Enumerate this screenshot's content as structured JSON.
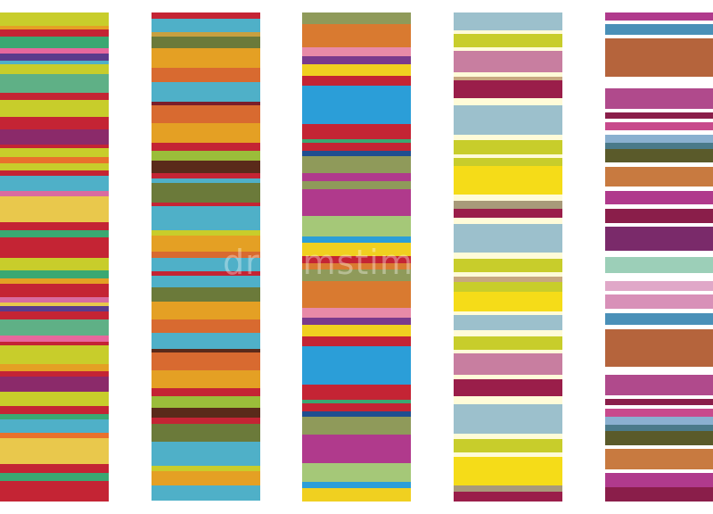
{
  "watermark": {
    "text": "dreamstime"
  },
  "columns": [
    {
      "name": "column-1-bright-stripes",
      "stripes": [
        [
          "#c8cd2b",
          14
        ],
        [
          "#e4a024",
          4
        ],
        [
          "#c42434",
          8
        ],
        [
          "#3aa872",
          12
        ],
        [
          "#e7679d",
          6
        ],
        [
          "#5b3b8c",
          8
        ],
        [
          "#4fb0c8",
          4
        ],
        [
          "#c8cd2b",
          10
        ],
        [
          "#5fb086",
          20
        ],
        [
          "#c42434",
          8
        ],
        [
          "#c8cd2b",
          18
        ],
        [
          "#c42434",
          14
        ],
        [
          "#8b2a6a",
          16
        ],
        [
          "#c42434",
          4
        ],
        [
          "#c8cd2b",
          10
        ],
        [
          "#e9712c",
          6
        ],
        [
          "#c8cd2b",
          8
        ],
        [
          "#c42434",
          6
        ],
        [
          "#4fb0c8",
          16
        ],
        [
          "#d96ba0",
          6
        ],
        [
          "#e9c84c",
          28
        ],
        [
          "#c42434",
          8
        ],
        [
          "#3aa872",
          8
        ],
        [
          "#c42434",
          22
        ],
        [
          "#c8cd2b",
          14
        ],
        [
          "#3aa872",
          8
        ],
        [
          "#e4a024",
          6
        ],
        [
          "#c42434",
          14
        ],
        [
          "#d96ba0",
          6
        ],
        [
          "#e9c84c",
          4
        ],
        [
          "#5b3b8c",
          6
        ],
        [
          "#c42434",
          8
        ],
        [
          "#5fb086",
          18
        ],
        [
          "#e7679d",
          6
        ],
        [
          "#c42434",
          4
        ],
        [
          "#c8cd2b",
          20
        ],
        [
          "#e4a024",
          8
        ],
        [
          "#c42434",
          6
        ],
        [
          "#8b2a6a",
          16
        ],
        [
          "#c8cd2b",
          16
        ],
        [
          "#c42434",
          8
        ],
        [
          "#3aa872",
          6
        ],
        [
          "#4fb0c8",
          14
        ],
        [
          "#e9712c",
          6
        ],
        [
          "#e9c84c",
          28
        ],
        [
          "#c42434",
          10
        ],
        [
          "#3aa872",
          8
        ],
        [
          "#c42434",
          22
        ]
      ]
    },
    {
      "name": "column-2-warm-cool-stripes",
      "stripes": [
        [
          "#c42434",
          6
        ],
        [
          "#4fb0c8",
          14
        ],
        [
          "#c8a040",
          4
        ],
        [
          "#6b7a3a",
          12
        ],
        [
          "#e4a024",
          20
        ],
        [
          "#d86a30",
          14
        ],
        [
          "#4fb0c8",
          20
        ],
        [
          "#7a1e2a",
          4
        ],
        [
          "#d86a30",
          18
        ],
        [
          "#e4a024",
          20
        ],
        [
          "#c42434",
          8
        ],
        [
          "#9bbd3a",
          10
        ],
        [
          "#5a2a1a",
          12
        ],
        [
          "#c42434",
          6
        ],
        [
          "#4fb0c8",
          4
        ],
        [
          "#6b7a3a",
          20
        ],
        [
          "#c42434",
          4
        ],
        [
          "#4fb0c8",
          24
        ],
        [
          "#c8cd2b",
          6
        ],
        [
          "#e4a024",
          16
        ],
        [
          "#d86a30",
          6
        ],
        [
          "#4fb0c8",
          14
        ],
        [
          "#c42434",
          4
        ],
        [
          "#4fb0c8",
          12
        ],
        [
          "#6b7a3a",
          14
        ],
        [
          "#e4a024",
          18
        ],
        [
          "#d86a30",
          14
        ],
        [
          "#4fb0c8",
          16
        ],
        [
          "#5a2a1a",
          4
        ],
        [
          "#d86a30",
          18
        ],
        [
          "#e4a024",
          18
        ],
        [
          "#c42434",
          8
        ],
        [
          "#9bbd3a",
          12
        ],
        [
          "#5a2a1a",
          10
        ],
        [
          "#c42434",
          6
        ],
        [
          "#6b7a3a",
          18
        ],
        [
          "#4fb0c8",
          24
        ],
        [
          "#c8cd2b",
          6
        ],
        [
          "#e4a024",
          14
        ],
        [
          "#4fb0c8",
          16
        ]
      ]
    },
    {
      "name": "column-3-vivid-stripes",
      "stripes": [
        [
          "#8f9a5a",
          12
        ],
        [
          "#d97a30",
          24
        ],
        [
          "#e88aa8",
          10
        ],
        [
          "#7a3a8c",
          8
        ],
        [
          "#f0d020",
          12
        ],
        [
          "#c42434",
          10
        ],
        [
          "#2b9ed8",
          40
        ],
        [
          "#c42434",
          16
        ],
        [
          "#3aa872",
          4
        ],
        [
          "#c42434",
          8
        ],
        [
          "#1f4e90",
          6
        ],
        [
          "#8f9a5a",
          18
        ],
        [
          "#b03a8c",
          8
        ],
        [
          "#8f9a5a",
          8
        ],
        [
          "#b03a8c",
          28
        ],
        [
          "#a5c878",
          22
        ],
        [
          "#2b9ed8",
          6
        ],
        [
          "#f0d020",
          14
        ],
        [
          "#c42434",
          8
        ],
        [
          "#d97a30",
          6
        ],
        [
          "#8f9a5a",
          12
        ],
        [
          "#d97a30",
          28
        ],
        [
          "#e88aa8",
          10
        ],
        [
          "#7a3a8c",
          8
        ],
        [
          "#f0d020",
          12
        ],
        [
          "#c42434",
          10
        ],
        [
          "#2b9ed8",
          40
        ],
        [
          "#c42434",
          16
        ],
        [
          "#3aa872",
          4
        ],
        [
          "#c42434",
          8
        ],
        [
          "#1f4e90",
          6
        ],
        [
          "#8f9a5a",
          18
        ],
        [
          "#b03a8c",
          8
        ],
        [
          "#b03a8c",
          22
        ],
        [
          "#a5c878",
          20
        ],
        [
          "#2b9ed8",
          6
        ],
        [
          "#f0d020",
          14
        ]
      ]
    },
    {
      "name": "column-4-pastel-stripes",
      "stripes": [
        [
          "#9cc0cc",
          18
        ],
        [
          "#fffbd8",
          4
        ],
        [
          "#c8cd2b",
          14
        ],
        [
          "#fffbd8",
          4
        ],
        [
          "#c87ea0",
          22
        ],
        [
          "#fffbd8",
          4
        ],
        [
          "#c8a880",
          4
        ],
        [
          "#9a1e4a",
          18
        ],
        [
          "#fffbd8",
          8
        ],
        [
          "#9cc0cc",
          30
        ],
        [
          "#fffbd8",
          6
        ],
        [
          "#c8cd2b",
          14
        ],
        [
          "#fffbd8",
          4
        ],
        [
          "#c8cd2b",
          8
        ],
        [
          "#f5dc18",
          30
        ],
        [
          "#fffbd8",
          6
        ],
        [
          "#a89a7a",
          8
        ],
        [
          "#9a1e4a",
          10
        ],
        [
          "#fffbd8",
          6
        ],
        [
          "#9cc0cc",
          30
        ],
        [
          "#fffbd8",
          6
        ],
        [
          "#c8cd2b",
          14
        ],
        [
          "#fffbd8",
          4
        ],
        [
          "#c8a880",
          6
        ],
        [
          "#c8cd2b",
          10
        ],
        [
          "#f5dc18",
          20
        ],
        [
          "#fffbd8",
          4
        ],
        [
          "#9cc0cc",
          16
        ],
        [
          "#fffbd8",
          6
        ],
        [
          "#c8cd2b",
          14
        ],
        [
          "#fffbd8",
          4
        ],
        [
          "#c87ea0",
          22
        ],
        [
          "#fffbd8",
          4
        ],
        [
          "#9a1e4a",
          18
        ],
        [
          "#fffbd8",
          8
        ],
        [
          "#9cc0cc",
          30
        ],
        [
          "#fffbd8",
          6
        ],
        [
          "#c8cd2b",
          14
        ],
        [
          "#fffbd8",
          4
        ],
        [
          "#f5dc18",
          30
        ],
        [
          "#a89a7a",
          6
        ],
        [
          "#9a1e4a",
          10
        ]
      ]
    },
    {
      "name": "column-5-earthy-stripes",
      "stripes": [
        [
          "#b03a8c",
          8
        ],
        [
          "#ffffff",
          4
        ],
        [
          "#4a90b8",
          10
        ],
        [
          "#ffffff",
          4
        ],
        [
          "#b5643c",
          38
        ],
        [
          "#ffffff",
          12
        ],
        [
          "#b04a8c",
          20
        ],
        [
          "#ffffff",
          4
        ],
        [
          "#8a1e4a",
          6
        ],
        [
          "#ffffff",
          4
        ],
        [
          "#c84a8c",
          8
        ],
        [
          "#ffffff",
          4
        ],
        [
          "#8ab0d0",
          8
        ],
        [
          "#4a7a8a",
          6
        ],
        [
          "#5a5a2a",
          14
        ],
        [
          "#ffffff",
          4
        ],
        [
          "#c87a40",
          20
        ],
        [
          "#ffffff",
          4
        ],
        [
          "#b03a8c",
          14
        ],
        [
          "#ffffff",
          4
        ],
        [
          "#8a1e4a",
          14
        ],
        [
          "#ffffff",
          4
        ],
        [
          "#7a2a6a",
          24
        ],
        [
          "#ffffff",
          6
        ],
        [
          "#9ccfb8",
          16
        ],
        [
          "#ffffff",
          8
        ],
        [
          "#e0a8c8",
          10
        ],
        [
          "#ffffff",
          4
        ],
        [
          "#d890b8",
          14
        ],
        [
          "#ffffff",
          4
        ],
        [
          "#4a90b8",
          12
        ],
        [
          "#ffffff",
          4
        ],
        [
          "#b5643c",
          38
        ],
        [
          "#ffffff",
          8
        ],
        [
          "#b04a8c",
          20
        ],
        [
          "#ffffff",
          4
        ],
        [
          "#8a1e4a",
          6
        ],
        [
          "#ffffff",
          4
        ],
        [
          "#c84a8c",
          8
        ],
        [
          "#8ab0d0",
          8
        ],
        [
          "#4a7a8a",
          6
        ],
        [
          "#5a5a2a",
          14
        ],
        [
          "#ffffff",
          4
        ],
        [
          "#c87a40",
          20
        ],
        [
          "#ffffff",
          4
        ],
        [
          "#b03a8c",
          14
        ],
        [
          "#8a1e4a",
          14
        ]
      ]
    }
  ]
}
